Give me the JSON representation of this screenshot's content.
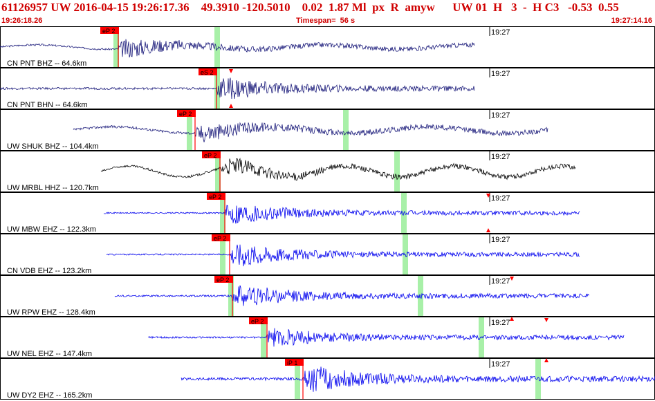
{
  "header": {
    "title": "61126957 UW 2016-04-15 19:26:17.36    49.3910 -120.5010    0.02  1.87 Ml  px  R  amyw      UW 01  H   3  -  H C3   -0.53  0.55",
    "start_time": "19:26:18.26",
    "timespan": "Timespan=  56 s",
    "end_time": "19:27:14.16"
  },
  "colors": {
    "header_text": "#d00000",
    "pick_flag": "#ff0000",
    "marker_green": "#a8f0a8",
    "trace_navy": "#1a1a7a",
    "trace_black": "#000000",
    "trace_blue": "#0000ee"
  },
  "minute_label": "19:27",
  "channels": [
    {
      "label": "CN PNT BHZ -- 64.6km",
      "pick": "eP 2",
      "color": "navy",
      "amp": 0.6,
      "noise": 0.05,
      "burst": 0.55,
      "low": 0.2,
      "low_f": 1.2
    },
    {
      "label": "CN PNT BHN -- 64.6km",
      "pick": "eS 2",
      "color": "navy",
      "amp": 0.6,
      "noise": 0.06,
      "burst": 0.7,
      "low": 0.0,
      "low_f": 1.0
    },
    {
      "label": "UW SHUK BHZ -- 104.4km",
      "pick": "eP 2",
      "color": "navy",
      "amp": 0.6,
      "noise": 0.07,
      "burst": 0.5,
      "low": 0.3,
      "low_f": 1.1
    },
    {
      "label": "UW MRBL HHZ -- 120.7km",
      "pick": "eP 2",
      "color": "black",
      "amp": 0.6,
      "noise": 0.06,
      "burst": 0.45,
      "low": 0.5,
      "low_f": 1.6
    },
    {
      "label": "UW MBW EHZ -- 122.3km",
      "pick": "eP 2",
      "color": "blue",
      "amp": 0.65,
      "noise": 0.04,
      "burst": 0.7,
      "low": 0.0,
      "low_f": 1.0
    },
    {
      "label": "CN VDB EHZ -- 123.2km",
      "pick": "eP 2",
      "color": "blue",
      "amp": 0.65,
      "noise": 0.04,
      "burst": 0.75,
      "low": 0.0,
      "low_f": 1.0
    },
    {
      "label": "UW RPW EHZ -- 128.4km",
      "pick": "eP 2",
      "color": "blue",
      "amp": 0.65,
      "noise": 0.05,
      "burst": 0.7,
      "low": 0.0,
      "low_f": 1.0
    },
    {
      "label": "UW NEL EHZ -- 147.4km",
      "pick": "eP 2",
      "color": "blue",
      "amp": 0.65,
      "noise": 0.05,
      "burst": 0.55,
      "low": 0.0,
      "low_f": 1.0
    },
    {
      "label": "UW DY2 EHZ -- 165.2km",
      "pick": "iP 1",
      "color": "blue",
      "amp": 0.7,
      "noise": 0.08,
      "burst": 0.8,
      "low": 0.0,
      "low_f": 1.0
    }
  ]
}
